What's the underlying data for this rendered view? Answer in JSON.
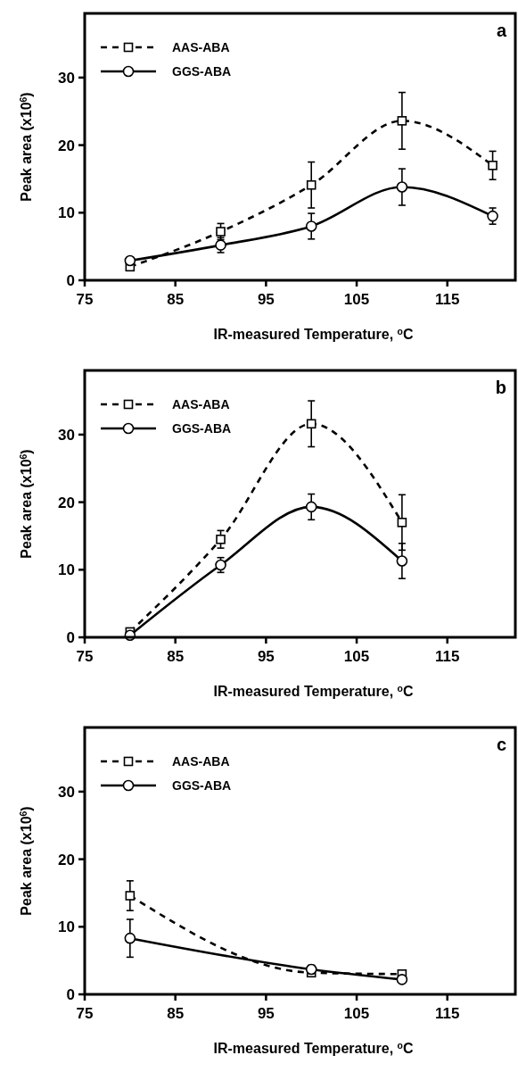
{
  "chart_data": [
    {
      "type": "line",
      "title": "a",
      "xlabel": "IR-measured Temperature, $^{o}$C",
      "ylabel": "Peak area (x10$^{6}$)",
      "xlim": [
        75,
        122.5
      ],
      "ylim": [
        0,
        39.5
      ],
      "xticks": [
        75,
        85,
        95,
        105,
        115
      ],
      "yticks": [
        0,
        10,
        20,
        30
      ],
      "legend": "top left",
      "grid": false,
      "series": [
        {
          "name": "AAS-ABA",
          "color": "#000000",
          "marker": "square",
          "line_style": "dashed",
          "x": [
            80,
            90,
            100,
            110,
            120
          ],
          "values": [
            2.0,
            7.2,
            14.1,
            23.6,
            17.0
          ],
          "errors": [
            null,
            1.2,
            3.4,
            4.2,
            2.1
          ]
        },
        {
          "name": "GGS-ABA",
          "color": "#000000",
          "marker": "circle",
          "line_style": "solid",
          "x": [
            80,
            90,
            100,
            110,
            120
          ],
          "values": [
            2.9,
            5.2,
            8.0,
            13.8,
            9.5
          ],
          "errors": [
            null,
            1.1,
            1.9,
            2.7,
            1.2
          ]
        }
      ]
    },
    {
      "type": "line",
      "title": "b",
      "xlabel": "IR-measured Temperature, $^{o}$C",
      "ylabel": "Peak area (x10$^{6}$)",
      "xlim": [
        75,
        122.5
      ],
      "ylim": [
        0,
        39.5
      ],
      "xticks": [
        75,
        85,
        95,
        105,
        115
      ],
      "yticks": [
        0,
        10,
        20,
        30
      ],
      "legend": "top left",
      "grid": false,
      "series": [
        {
          "name": "AAS-ABA",
          "color": "#000000",
          "marker": "square",
          "line_style": "dashed",
          "x": [
            80,
            90,
            100,
            110
          ],
          "values": [
            0.8,
            14.5,
            31.6,
            17.0
          ],
          "errors": [
            null,
            1.3,
            3.4,
            4.1
          ]
        },
        {
          "name": "GGS-ABA",
          "color": "#000000",
          "marker": "circle",
          "line_style": "solid",
          "x": [
            80,
            90,
            100,
            110
          ],
          "values": [
            0.3,
            10.7,
            19.3,
            11.3
          ],
          "errors": [
            null,
            1.1,
            1.9,
            2.6
          ]
        }
      ]
    },
    {
      "type": "line",
      "title": "c",
      "xlabel": "IR-measured Temperature, $^{o}$C",
      "ylabel": "Peak area (x10$^{6}$)",
      "xlim": [
        75,
        122.5
      ],
      "ylim": [
        0,
        39.5
      ],
      "xticks": [
        75,
        85,
        95,
        105,
        115
      ],
      "yticks": [
        0,
        10,
        20,
        30
      ],
      "legend": "top left",
      "grid": false,
      "series": [
        {
          "name": "AAS-ABA",
          "color": "#000000",
          "marker": "square",
          "line_style": "dashed",
          "x": [
            80,
            100,
            110
          ],
          "values": [
            14.6,
            3.2,
            3.0
          ],
          "errors": [
            2.2,
            null,
            null
          ]
        },
        {
          "name": "GGS-ABA",
          "color": "#000000",
          "marker": "circle",
          "line_style": "solid",
          "x": [
            80,
            100,
            110
          ],
          "values": [
            8.3,
            3.7,
            2.2
          ],
          "errors": [
            2.8,
            0.6,
            null
          ]
        }
      ]
    }
  ]
}
